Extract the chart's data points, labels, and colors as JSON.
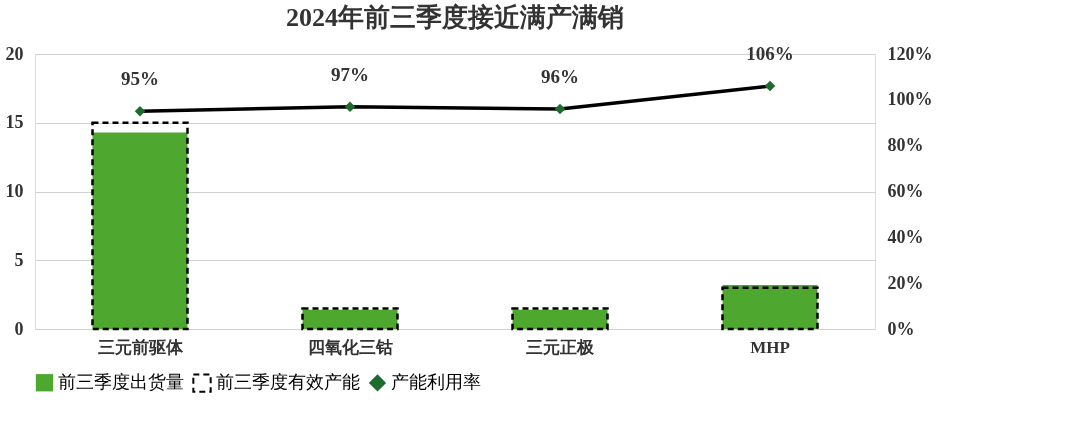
{
  "chart_data": {
    "type": "bar",
    "title": "2024年前三季度接近满产满销",
    "categories": [
      "三元前驱体",
      "四氧化三钴",
      "三元正极",
      "MHP"
    ],
    "series": [
      {
        "name": "前三季度出货量",
        "color": "#4ea72e",
        "values": [
          14.3,
          1.4,
          1.4,
          3.2
        ]
      },
      {
        "name": "前三季度有效产能",
        "color": "#000000",
        "line_style": "dashed",
        "values": [
          15.0,
          1.5,
          1.5,
          3.0
        ]
      },
      {
        "name": "产能利用率",
        "type": "line",
        "axis": "y2",
        "color": "#000000",
        "marker": "diamond",
        "data_labels": true,
        "value_labels": [
          "95%",
          "97%",
          "96%",
          "106%"
        ],
        "values": [
          95,
          97,
          96,
          106
        ]
      }
    ],
    "ylim": [
      0,
      20
    ],
    "yticks": [
      0,
      5,
      10,
      15,
      20
    ],
    "y2lim": [
      0,
      120
    ],
    "y2ticks": [
      {
        "value": 0,
        "label": "0%"
      },
      {
        "value": 20,
        "label": "20%"
      },
      {
        "value": 40,
        "label": "40%"
      },
      {
        "value": 60,
        "label": "60%"
      },
      {
        "value": 80,
        "label": "80%"
      },
      {
        "value": 100,
        "label": "100%"
      },
      {
        "value": 120,
        "label": "120%"
      }
    ],
    "grid": "y",
    "legend": "bottom"
  }
}
